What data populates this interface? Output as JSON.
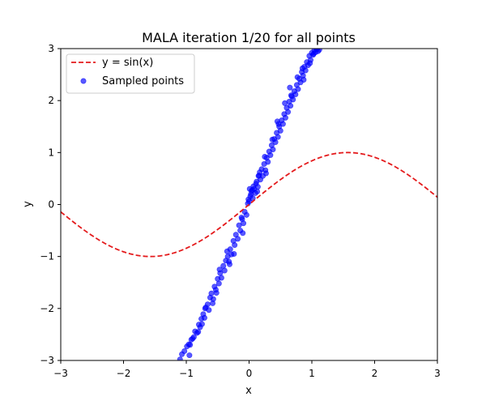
{
  "chart_data": {
    "type": "scatter",
    "title": "MALA iteration 1/20 for all points",
    "xlabel": "x",
    "ylabel": "y",
    "xlim": [
      -3,
      3
    ],
    "ylim": [
      -3,
      3
    ],
    "xticks": [
      -3,
      -2,
      -1,
      0,
      1,
      2,
      3
    ],
    "yticks": [
      -3,
      -2,
      -1,
      0,
      1,
      2,
      3
    ],
    "xtick_labels": [
      "−3",
      "−2",
      "−1",
      "0",
      "1",
      "2",
      "3"
    ],
    "ytick_labels": [
      "−3",
      "−2",
      "−1",
      "0",
      "1",
      "2",
      "3"
    ],
    "grid": false,
    "legend_position": "upper-left",
    "series": [
      {
        "name": "y = sin(x)",
        "kind": "line",
        "style": "dashed",
        "color": "#e41a1c",
        "function": "sin",
        "x_range": [
          -3,
          3
        ]
      },
      {
        "name": "Sampled points",
        "kind": "scatter",
        "color": "#0000ff",
        "opacity": 0.65,
        "trend": "points scattered around y = 3x, x in [-1.15, 1.15]",
        "x": [
          -1.1,
          -1.07,
          -1.03,
          -0.99,
          -0.96,
          -0.94,
          -0.9,
          -0.88,
          -0.86,
          -0.83,
          -0.8,
          -0.78,
          -0.76,
          -0.73,
          -0.71,
          -0.69,
          -0.66,
          -0.64,
          -0.62,
          -0.6,
          -0.57,
          -0.55,
          -0.53,
          -0.5,
          -0.48,
          -0.46,
          -0.44,
          -0.41,
          -0.39,
          -0.37,
          -0.34,
          -0.32,
          -0.3,
          -0.28,
          -0.25,
          -0.23,
          -0.21,
          -0.18,
          -0.16,
          -0.14,
          -0.11,
          -0.09,
          -0.07,
          -0.04,
          -0.02,
          0.0,
          0.02,
          0.04,
          0.06,
          0.08,
          0.1,
          0.12,
          0.14,
          0.16,
          0.18,
          0.2,
          0.22,
          0.24,
          0.26,
          0.28,
          0.3,
          0.32,
          0.34,
          0.36,
          0.38,
          0.4,
          0.42,
          0.44,
          0.46,
          0.48,
          0.5,
          0.52,
          0.54,
          0.56,
          0.58,
          0.6,
          0.62,
          0.64,
          0.66,
          0.68,
          0.7,
          0.72,
          0.74,
          0.76,
          0.78,
          0.8,
          0.82,
          0.84,
          0.86,
          0.88,
          0.9,
          0.92,
          0.94,
          0.96,
          0.98,
          1.0,
          1.02,
          1.04,
          1.06,
          1.08,
          1.1,
          1.12,
          -1.05,
          -0.92,
          -0.81,
          -0.7,
          -0.58,
          -0.47,
          -0.35,
          -0.24,
          -0.12,
          -0.01,
          0.07,
          0.17,
          0.27,
          0.37,
          0.47,
          0.57,
          0.67,
          0.77,
          0.87,
          0.97,
          1.07,
          -0.95,
          -0.75,
          -0.52,
          -0.31,
          -0.1,
          0.05,
          0.25,
          0.45,
          0.65,
          0.85,
          1.03,
          0.01,
          0.03,
          0.11,
          0.13,
          0.15
        ],
        "y": [
          -2.98,
          -2.88,
          -2.82,
          -2.73,
          -2.69,
          -2.7,
          -2.58,
          -2.55,
          -2.44,
          -2.47,
          -2.31,
          -2.36,
          -2.2,
          -2.11,
          -2.18,
          -1.98,
          -1.92,
          -2.03,
          -1.79,
          -1.71,
          -1.82,
          -1.58,
          -1.64,
          -1.43,
          -1.52,
          -1.32,
          -1.41,
          -1.18,
          -1.27,
          -1.08,
          -1.0,
          -1.1,
          -0.86,
          -0.96,
          -0.7,
          -0.78,
          -0.58,
          -0.66,
          -0.4,
          -0.5,
          -0.28,
          -0.36,
          -0.14,
          -0.2,
          0.02,
          0.06,
          0.16,
          0.26,
          0.12,
          0.3,
          0.22,
          0.44,
          0.34,
          0.56,
          0.48,
          0.68,
          0.55,
          0.78,
          0.66,
          0.9,
          0.82,
          1.02,
          0.95,
          1.14,
          1.06,
          1.26,
          1.2,
          1.38,
          1.3,
          1.5,
          1.42,
          1.62,
          1.55,
          1.74,
          1.67,
          1.86,
          1.78,
          1.98,
          1.9,
          2.08,
          2.02,
          2.18,
          2.12,
          2.3,
          2.22,
          2.42,
          2.35,
          2.55,
          2.48,
          2.65,
          2.58,
          2.74,
          2.68,
          2.86,
          2.78,
          2.92,
          2.88,
          2.97,
          2.93,
          2.99,
          2.95,
          2.98,
          -3.05,
          -2.6,
          -2.45,
          -2.0,
          -1.9,
          -1.25,
          -0.9,
          -0.95,
          -0.25,
          0.1,
          0.35,
          0.62,
          0.6,
          1.25,
          1.55,
          1.95,
          2.1,
          2.45,
          2.4,
          2.72,
          3.0,
          -2.9,
          -2.3,
          -1.7,
          -1.15,
          -0.55,
          0.28,
          0.92,
          1.6,
          2.25,
          2.62,
          2.9,
          0.3,
          0.2,
          0.4,
          0.25,
          0.55
        ]
      }
    ]
  }
}
